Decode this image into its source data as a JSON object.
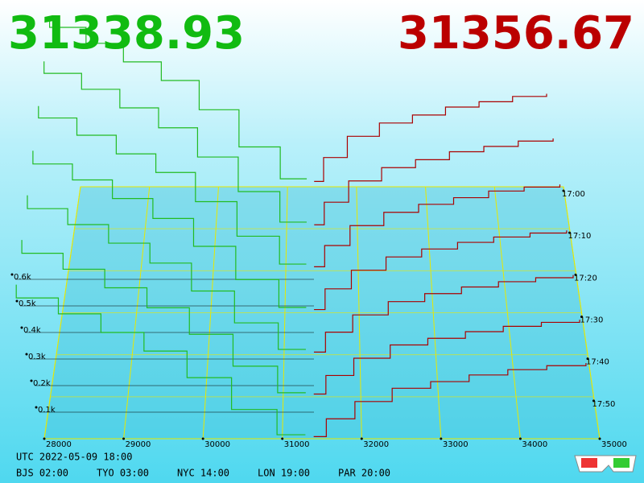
{
  "bid_price": 31338.93,
  "ask_price": 31356.67,
  "timestamp": "UTC 2022-05-09 18:00",
  "timezones": [
    "BJS 02:00",
    "TYO 03:00",
    "NYC 14:00",
    "LON 19:00",
    "PAR 20:00"
  ],
  "chart_data": {
    "type": "depth3d",
    "xlim": [
      28000,
      35000
    ],
    "xticks": [
      28000,
      29000,
      30000,
      31000,
      32000,
      33000,
      34000,
      35000
    ],
    "ylim": [
      0,
      600
    ],
    "yticks": [
      {
        "value": 100,
        "label": "0.1k"
      },
      {
        "value": 200,
        "label": "0.2k"
      },
      {
        "value": 300,
        "label": "0.3k"
      },
      {
        "value": 400,
        "label": "0.4k"
      },
      {
        "value": 500,
        "label": "0.5k"
      },
      {
        "value": 600,
        "label": "0.6k"
      }
    ],
    "zlim": [
      1020,
      1080
    ],
    "zticks": [
      {
        "value": 1020,
        "label": "17:00"
      },
      {
        "value": 1030,
        "label": "17:10"
      },
      {
        "value": 1040,
        "label": "17:20"
      },
      {
        "value": 1050,
        "label": "17:30"
      },
      {
        "value": 1060,
        "label": "17:40"
      },
      {
        "value": 1070,
        "label": "17:50"
      }
    ],
    "bid_color": "#22bb22",
    "ask_color": "#aa0000",
    "bid_prices": [
      28000,
      28500,
      29000,
      29500,
      30000,
      30500,
      31000,
      31300
    ],
    "ask_prices": [
      31400,
      31600,
      32000,
      32500,
      33000,
      33500,
      34000,
      34500,
      35000
    ],
    "snapshots": [
      {
        "time": 1020,
        "bids": [
          640,
          600,
          540,
          470,
          400,
          290,
          150,
          30
        ],
        "asks": [
          20,
          110,
          190,
          240,
          270,
          300,
          320,
          340,
          350
        ]
      },
      {
        "time": 1030,
        "bids": [
          630,
          585,
          525,
          455,
          380,
          270,
          140,
          25
        ],
        "asks": [
          15,
          100,
          180,
          230,
          260,
          290,
          310,
          330,
          340
        ]
      },
      {
        "time": 1040,
        "bids": [
          620,
          575,
          510,
          440,
          370,
          260,
          130,
          25
        ],
        "asks": [
          15,
          95,
          170,
          220,
          250,
          275,
          300,
          315,
          325
        ]
      },
      {
        "time": 1050,
        "bids": [
          610,
          560,
          500,
          430,
          355,
          250,
          125,
          20
        ],
        "asks": [
          12,
          90,
          160,
          210,
          240,
          265,
          285,
          300,
          310
        ]
      },
      {
        "time": 1060,
        "bids": [
          600,
          550,
          490,
          420,
          345,
          240,
          120,
          20
        ],
        "asks": [
          10,
          85,
          150,
          200,
          230,
          255,
          275,
          290,
          300
        ]
      },
      {
        "time": 1070,
        "bids": [
          590,
          540,
          480,
          410,
          335,
          235,
          115,
          15
        ],
        "asks": [
          10,
          80,
          145,
          195,
          220,
          245,
          265,
          280,
          290
        ]
      },
      {
        "time": 1080,
        "bids": [
          580,
          530,
          470,
          400,
          330,
          230,
          110,
          15
        ],
        "asks": [
          8,
          75,
          140,
          190,
          215,
          240,
          260,
          275,
          285
        ]
      }
    ]
  }
}
